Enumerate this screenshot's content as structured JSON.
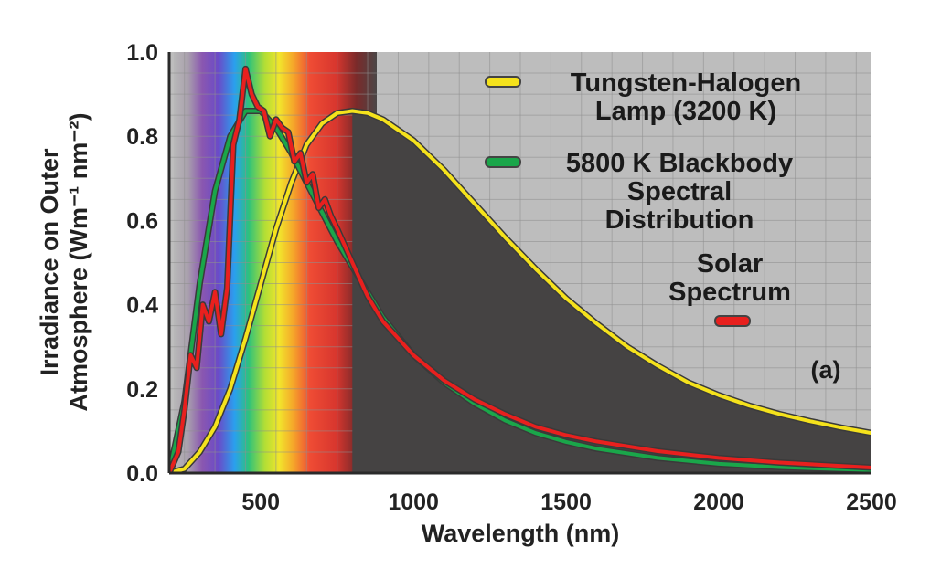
{
  "chart_data": {
    "type": "line",
    "title": "",
    "xlabel": "Wavelength (nm)",
    "ylabel_line1": "Irradiance on Outer",
    "ylabel_line2": "Atmosphere (Wm⁻¹ nm⁻²)",
    "xlim": [
      200,
      2500
    ],
    "ylim": [
      0,
      1.0
    ],
    "x_ticks": [
      500,
      1000,
      1500,
      2000,
      2500
    ],
    "y_ticks": [
      0.0,
      0.2,
      0.4,
      0.6,
      0.8,
      1.0
    ],
    "x_tick_labels": [
      "500",
      "1000",
      "1500",
      "2000",
      "2500"
    ],
    "y_tick_labels": [
      "0.0",
      "0.2",
      "0.4",
      "0.6",
      "0.8",
      "1.0"
    ],
    "grid": true,
    "legend_position": "top-right",
    "annotation": "(a)",
    "series": [
      {
        "name_lines": [
          "Tungsten-Halogen",
          "Lamp (3200 K)"
        ],
        "color": "#f5e21c",
        "x": [
          200,
          250,
          300,
          350,
          400,
          450,
          500,
          550,
          600,
          650,
          700,
          750,
          800,
          850,
          900,
          1000,
          1100,
          1200,
          1300,
          1400,
          1500,
          1600,
          1700,
          1800,
          1900,
          2000,
          2100,
          2200,
          2300,
          2400,
          2500
        ],
        "y": [
          0.0,
          0.01,
          0.05,
          0.11,
          0.2,
          0.32,
          0.45,
          0.58,
          0.69,
          0.78,
          0.83,
          0.855,
          0.86,
          0.855,
          0.84,
          0.79,
          0.72,
          0.64,
          0.56,
          0.485,
          0.415,
          0.355,
          0.3,
          0.255,
          0.215,
          0.185,
          0.16,
          0.14,
          0.123,
          0.108,
          0.095
        ]
      },
      {
        "name_lines": [
          "5800 K Blackbody",
          "Spectral",
          "Distribution"
        ],
        "color": "#1aa64a",
        "x": [
          200,
          250,
          300,
          350,
          400,
          450,
          500,
          550,
          600,
          650,
          700,
          750,
          800,
          900,
          1000,
          1100,
          1200,
          1300,
          1400,
          1500,
          1600,
          1800,
          2000,
          2200,
          2500
        ],
        "y": [
          0.0,
          0.17,
          0.45,
          0.67,
          0.8,
          0.86,
          0.86,
          0.82,
          0.76,
          0.69,
          0.62,
          0.55,
          0.49,
          0.37,
          0.28,
          0.215,
          0.165,
          0.125,
          0.095,
          0.074,
          0.058,
          0.036,
          0.022,
          0.014,
          0.007
        ]
      },
      {
        "name_lines": [
          "Solar",
          "Spectrum"
        ],
        "color": "#e8201e",
        "x": [
          200,
          230,
          250,
          270,
          290,
          310,
          330,
          350,
          370,
          390,
          410,
          430,
          450,
          470,
          490,
          510,
          530,
          550,
          570,
          590,
          610,
          630,
          650,
          670,
          690,
          710,
          730,
          750,
          800,
          850,
          900,
          1000,
          1100,
          1200,
          1300,
          1400,
          1500,
          1600,
          1800,
          2000,
          2200,
          2500
        ],
        "y": [
          0.0,
          0.05,
          0.15,
          0.28,
          0.25,
          0.4,
          0.36,
          0.43,
          0.33,
          0.44,
          0.78,
          0.84,
          0.96,
          0.9,
          0.87,
          0.86,
          0.8,
          0.84,
          0.82,
          0.81,
          0.74,
          0.76,
          0.69,
          0.71,
          0.63,
          0.65,
          0.61,
          0.58,
          0.5,
          0.42,
          0.36,
          0.28,
          0.22,
          0.175,
          0.14,
          0.11,
          0.09,
          0.075,
          0.052,
          0.036,
          0.025,
          0.013
        ]
      }
    ]
  }
}
